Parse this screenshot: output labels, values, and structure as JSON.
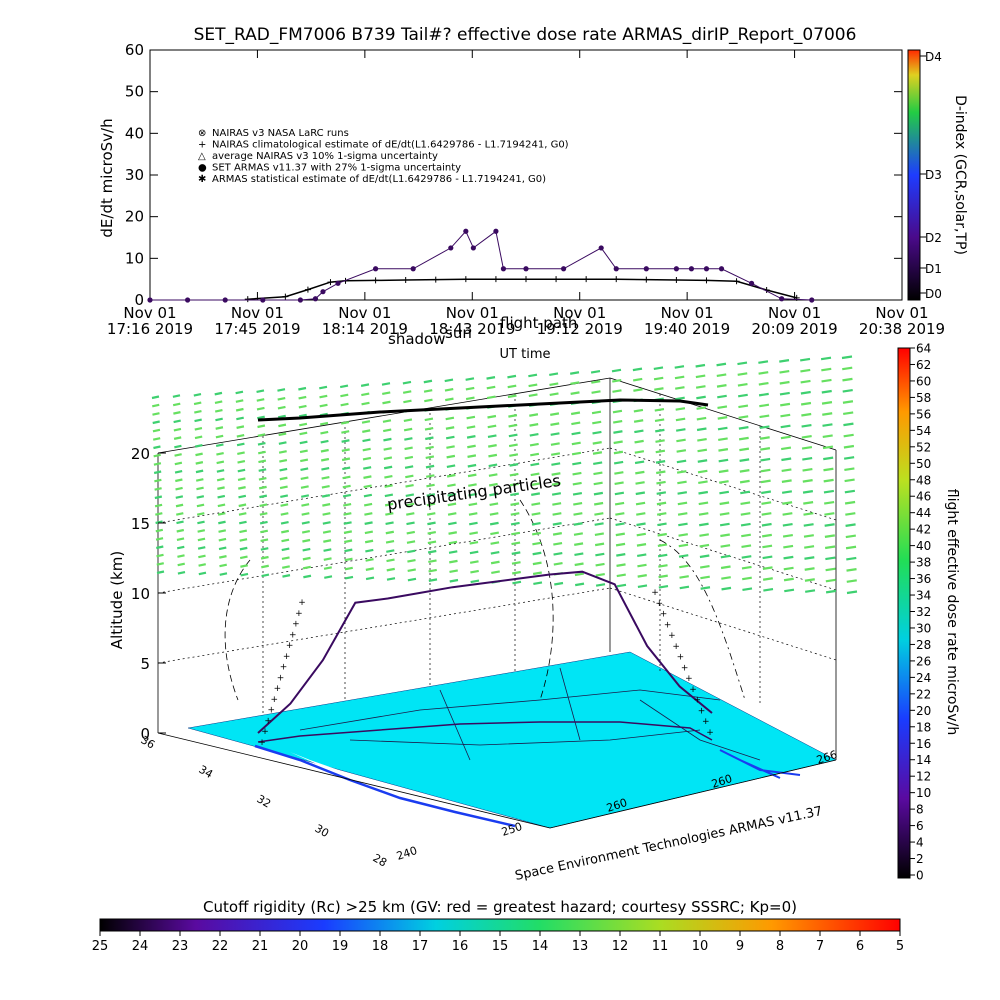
{
  "title": "SET_RAD_FM7006  B739 Tail#? effective dose rate ARMAS_dirIP_Report_07006",
  "colors": {
    "purple": "#3a0a60",
    "cyan_surface": "#00e5f5",
    "green_particles": "#55e06a",
    "ocean_blue": "#1a3cf0"
  },
  "chart_data": [
    {
      "type": "scatter",
      "title": "SET_RAD_FM7006  B739 Tail#? effective dose rate ARMAS_dirIP_Report_07006",
      "ylabel": "dE/dt microSv/h",
      "xlabel": "UT time",
      "ylim": [
        0,
        60
      ],
      "yticks": [
        "0",
        "10",
        "20",
        "30",
        "40",
        "50",
        "60"
      ],
      "xticks": [
        {
          "line1": "Nov 01",
          "line2": "17:16 2019"
        },
        {
          "line1": "Nov 01",
          "line2": "17:45 2019"
        },
        {
          "line1": "Nov 01",
          "line2": "18:14 2019"
        },
        {
          "line1": "Nov 01",
          "line2": "18:43 2019"
        },
        {
          "line1": "Nov 01",
          "line2": "19:12 2019"
        },
        {
          "line1": "Nov 01",
          "line2": "19:40 2019"
        },
        {
          "line1": "Nov 01",
          "line2": "20:09 2019"
        },
        {
          "line1": "Nov 01",
          "line2": "20:38 2019"
        }
      ],
      "overlay_labels": [
        "shadow",
        "sun",
        "flight path"
      ],
      "legend": [
        {
          "symbol": "⊗",
          "label": "NAIRAS v3 NASA LaRC runs"
        },
        {
          "symbol": "+",
          "label": "NAIRAS climatological estimate of dE/dt(L1.6429786 - L1.7194241, G0)"
        },
        {
          "symbol": "△",
          "label": "average NAIRAS v3 10% 1-sigma uncertainty"
        },
        {
          "symbol": "●",
          "label": "SET ARMAS v11.37 with 27% 1-sigma uncertainty"
        },
        {
          "symbol": "✱",
          "label": "ARMAS statistical estimate of dE/dt(L1.6429786 - L1.7194241, G0)"
        }
      ],
      "right_scale": {
        "label": "D-index (GCR,solar,TP)",
        "ticks": [
          "D0",
          "D1",
          "D2",
          "D3",
          "D4"
        ]
      },
      "series": [
        {
          "name": "NAIRAS climatological estimate",
          "x": [
            0.13,
            0.18,
            0.21,
            0.24,
            0.26,
            0.3,
            0.34,
            0.38,
            0.42,
            0.46,
            0.5,
            0.54,
            0.58,
            0.62,
            0.66,
            0.7,
            0.74,
            0.78,
            0.82,
            0.86
          ],
          "y": [
            0.2,
            0.8,
            2.5,
            4.3,
            4.6,
            4.7,
            4.8,
            4.9,
            5.0,
            5.0,
            5.0,
            5.0,
            5.0,
            5.0,
            4.9,
            4.8,
            4.7,
            4.5,
            2.4,
            0.5
          ]
        },
        {
          "name": "SET ARMAS v11.37",
          "x": [
            0.0,
            0.05,
            0.1,
            0.15,
            0.2,
            0.22,
            0.23,
            0.25,
            0.3,
            0.35,
            0.4,
            0.42,
            0.43,
            0.46,
            0.47,
            0.5,
            0.55,
            0.6,
            0.62,
            0.66,
            0.7,
            0.72,
            0.74,
            0.76,
            0.8,
            0.84,
            0.88
          ],
          "y": [
            0.0,
            0.0,
            0.0,
            0.0,
            0.0,
            0.3,
            2.0,
            4.0,
            7.5,
            7.5,
            12.5,
            16.5,
            12.5,
            16.5,
            7.5,
            7.5,
            7.5,
            12.5,
            7.5,
            7.5,
            7.5,
            7.5,
            7.5,
            7.5,
            4.0,
            0.3,
            0.0
          ]
        }
      ]
    },
    {
      "type": "scatter",
      "title": "",
      "zlabel": "Altitude (km)",
      "zticks": [
        "0",
        "5",
        "10",
        "15",
        "20"
      ],
      "lat_ticks": [
        "36",
        "34",
        "32",
        "30",
        "28"
      ],
      "lon_ticks": [
        "240",
        "250",
        "260",
        "260",
        "266"
      ],
      "annotation": "precipitating particles",
      "credit": "Space Environment Technologies ARMAS v11.37",
      "colorbar": {
        "label": "flight effective dose rate microSv/h",
        "ticks": [
          "0",
          "2",
          "4",
          "6",
          "8",
          "10",
          "12",
          "14",
          "16",
          "18",
          "20",
          "22",
          "24",
          "26",
          "28",
          "30",
          "32",
          "34",
          "36",
          "38",
          "40",
          "42",
          "44",
          "46",
          "48",
          "50",
          "52",
          "54",
          "56",
          "58",
          "60",
          "62",
          "64"
        ]
      },
      "flight_altitude_km": [
        0.0,
        2.0,
        5.0,
        9.0,
        9.2,
        9.5,
        9.8,
        10.0,
        10.2,
        10.4,
        10.5,
        9.5,
        5.0,
        2.0,
        0.0
      ]
    },
    {
      "type": "heatmap",
      "title": "Cutoff rigidity (Rc) >25 km (GV: red = greatest hazard; courtesy SSSRC; Kp=0)",
      "ticks": [
        "25",
        "24",
        "23",
        "22",
        "21",
        "20",
        "19",
        "18",
        "17",
        "16",
        "15",
        "14",
        "13",
        "12",
        "11",
        "10",
        "9",
        "8",
        "7",
        "6",
        "5"
      ]
    }
  ]
}
